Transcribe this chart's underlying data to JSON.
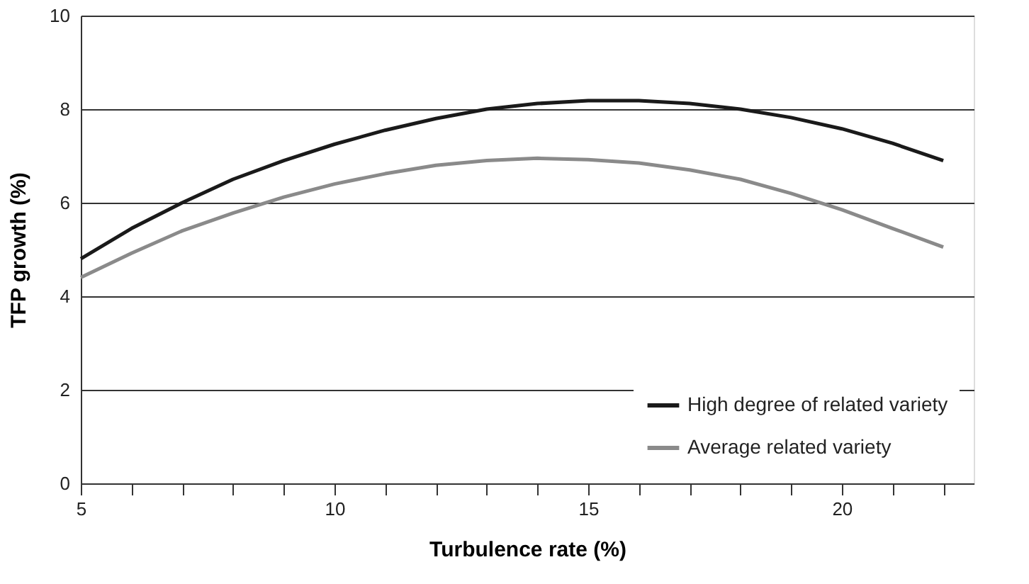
{
  "chart_data": {
    "type": "line",
    "xlabel": "Turbulence rate (%)",
    "ylabel": "TFP growth (%)",
    "x": [
      5,
      6,
      7,
      8,
      9,
      10,
      11,
      12,
      13,
      14,
      15,
      16,
      17,
      18,
      19,
      20,
      21,
      22
    ],
    "series": [
      {
        "name": "High degree of related variety",
        "color": "#1a1a1a",
        "values": [
          4.8,
          5.45,
          6.0,
          6.5,
          6.9,
          7.25,
          7.55,
          7.8,
          8.0,
          8.12,
          8.18,
          8.18,
          8.12,
          8.0,
          7.82,
          7.58,
          7.27,
          6.9
        ]
      },
      {
        "name": "Average related variety",
        "color": "#8a8a8a",
        "values": [
          4.4,
          4.92,
          5.4,
          5.78,
          6.12,
          6.4,
          6.62,
          6.8,
          6.9,
          6.95,
          6.92,
          6.85,
          6.7,
          6.5,
          6.2,
          5.85,
          5.45,
          5.05
        ]
      }
    ],
    "xlim": [
      5,
      22.6
    ],
    "ylim": [
      0,
      10
    ],
    "xticks": [
      5,
      {
        "value": 6,
        "label": null
      },
      {
        "value": 7,
        "label": null
      },
      {
        "value": 8,
        "label": null
      },
      {
        "value": 9,
        "label": null
      },
      10,
      {
        "value": 11,
        "label": null
      },
      {
        "value": 12,
        "label": null
      },
      {
        "value": 13,
        "label": null
      },
      {
        "value": 14,
        "label": null
      },
      15,
      {
        "value": 16,
        "label": null
      },
      {
        "value": 17,
        "label": null
      },
      {
        "value": 18,
        "label": null
      },
      {
        "value": 19,
        "label": null
      },
      20,
      {
        "value": 21,
        "label": null
      },
      {
        "value": 22,
        "label": null
      }
    ],
    "yticks": [
      0,
      2,
      4,
      6,
      8,
      10
    ],
    "grid": "y",
    "legend": "bottom right",
    "marker": "none",
    "line_style": "solid"
  }
}
